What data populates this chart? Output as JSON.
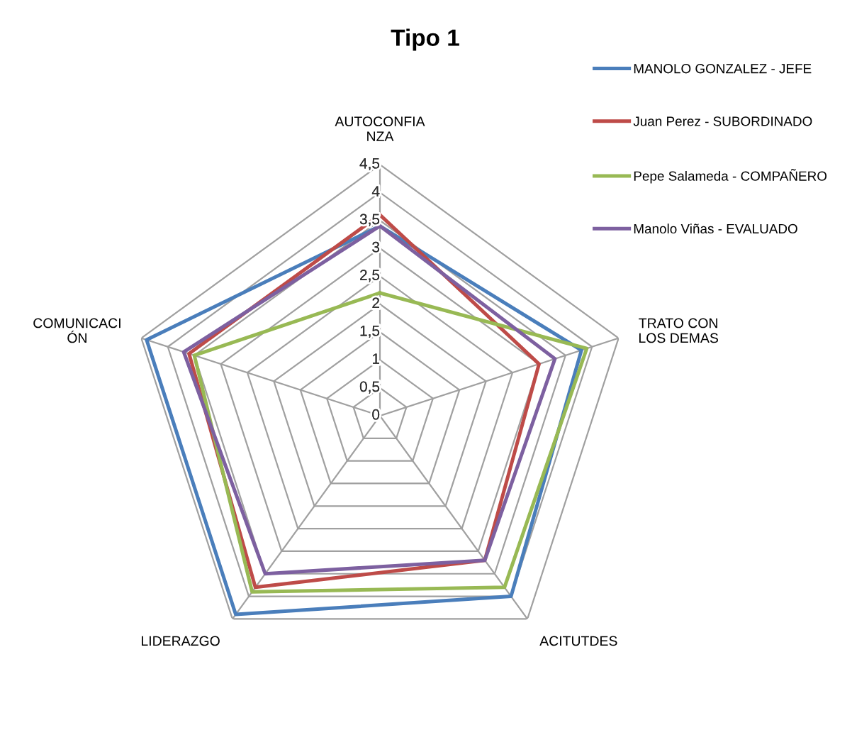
{
  "chart_data": {
    "type": "radar",
    "title": "Tipo 1",
    "categories": [
      "AUTOCONFIA\nNZA",
      "TRATO CON\nLOS DEMAS",
      "ACITUTDES",
      "LIDERAZGO",
      "COMUNICACI\nÓN"
    ],
    "series": [
      {
        "name": "MANOLO GONZALEZ - JEFE",
        "color": "#4a7ebb",
        "values": [
          3.4,
          3.8,
          4.0,
          4.4,
          4.4
        ]
      },
      {
        "name": "Juan Perez - SUBORDINADO",
        "color": "#be4b48",
        "values": [
          3.6,
          3.0,
          3.2,
          3.8,
          3.6
        ]
      },
      {
        "name": "Pepe Salameda - COMPAÑERO",
        "color": "#98b954",
        "values": [
          2.2,
          3.9,
          3.8,
          3.9,
          3.5
        ]
      },
      {
        "name": "Manolo Viñas - EVALUADO",
        "color": "#7d60a0",
        "values": [
          3.4,
          3.3,
          3.2,
          3.5,
          3.7
        ]
      }
    ],
    "ylim": [
      0,
      4.5
    ],
    "yticks": [
      0,
      {
        "value": 0.5,
        "label": "0,5"
      },
      1,
      {
        "value": 1.5,
        "label": "1,5"
      },
      2,
      {
        "value": 2.5,
        "label": "2,5"
      },
      3,
      {
        "value": 3.5,
        "label": "3,5"
      },
      4,
      {
        "value": 4.5,
        "label": "4,5"
      }
    ],
    "grid": true,
    "legend": "top right",
    "marker": "none",
    "line_style": "solid"
  }
}
